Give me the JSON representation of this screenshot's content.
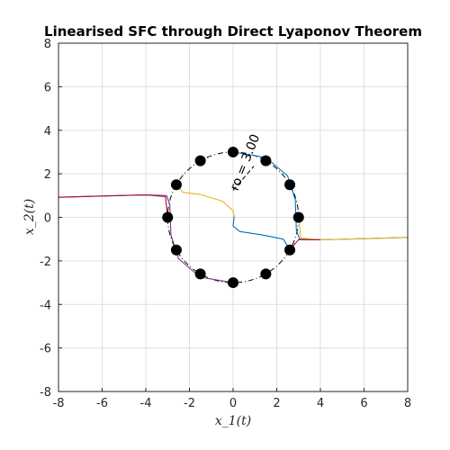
{
  "chart_data": {
    "type": "line",
    "title": "Linearised SFC through Direct Lyaponov Theorem",
    "xlabel": "x_1(t)",
    "ylabel": "x_2(t)",
    "xlim": [
      -8,
      8
    ],
    "ylim": [
      -8,
      8
    ],
    "xticks": [
      "-8",
      "-6",
      "-4",
      "-2",
      "0",
      "2",
      "4",
      "6",
      "8"
    ],
    "yticks": [
      "-8",
      "-6",
      "-4",
      "-2",
      "0",
      "2",
      "4",
      "6",
      "8"
    ],
    "grid": true,
    "annotation": "ro = 3.00",
    "region_circle": {
      "center": [
        0,
        0
      ],
      "radius": 3.0,
      "style": "dash-dot"
    },
    "initial_points": [
      [
        0,
        3
      ],
      [
        1.5,
        2.6
      ],
      [
        2.6,
        1.5
      ],
      [
        3,
        0
      ],
      [
        2.6,
        -1.5
      ],
      [
        1.5,
        -2.6
      ],
      [
        0,
        -3
      ],
      [
        -1.5,
        -2.6
      ],
      [
        -2.6,
        -1.5
      ],
      [
        -3,
        0
      ],
      [
        -2.6,
        1.5
      ],
      [
        -1.5,
        2.6
      ]
    ],
    "series": [
      {
        "color": "#0072BD",
        "points": [
          [
            0,
            3
          ],
          [
            1.5,
            2.75
          ],
          [
            2.5,
            1.9
          ],
          [
            2.85,
            0.8
          ],
          [
            2.9,
            -0.6
          ],
          [
            3.05,
            -1.0
          ],
          [
            4,
            -1.03
          ],
          [
            6,
            -0.98
          ],
          [
            8,
            -0.92
          ]
        ]
      },
      {
        "color": "#0072BD",
        "points": [
          [
            2.6,
            -1.5
          ],
          [
            2.3,
            -1.0
          ],
          [
            1.3,
            -0.8
          ],
          [
            0.3,
            -0.65
          ],
          [
            0,
            -0.4
          ],
          [
            0.05,
            0.05
          ]
        ]
      },
      {
        "color": "#EDB120",
        "points": [
          [
            3,
            0
          ],
          [
            3.1,
            -0.95
          ],
          [
            4,
            -1.03
          ],
          [
            6,
            -0.98
          ],
          [
            8,
            -0.92
          ]
        ]
      },
      {
        "color": "#EDB120",
        "points": [
          [
            -2.6,
            1.5
          ],
          [
            -2.3,
            1.15
          ],
          [
            -1.5,
            1.05
          ],
          [
            -0.5,
            0.75
          ],
          [
            0,
            0.3
          ],
          [
            0.05,
            0.05
          ]
        ]
      },
      {
        "color": "#7E2F8E",
        "points": [
          [
            0,
            -3
          ],
          [
            -1.5,
            -2.75
          ],
          [
            -2.5,
            -1.9
          ],
          [
            -2.85,
            -0.8
          ],
          [
            -2.9,
            0.6
          ],
          [
            -3.05,
            1.0
          ],
          [
            -4,
            1.03
          ],
          [
            -6,
            0.98
          ],
          [
            -8,
            0.92
          ]
        ]
      },
      {
        "color": "#A2142F",
        "points": [
          [
            -3,
            0
          ],
          [
            -3.1,
            0.95
          ],
          [
            -4,
            1.03
          ],
          [
            -6,
            0.98
          ],
          [
            -8,
            0.92
          ]
        ]
      },
      {
        "color": "#A2142F",
        "points": [
          [
            2.6,
            -1.5
          ],
          [
            2.85,
            -1.2
          ],
          [
            3.0,
            -1.02
          ],
          [
            4,
            -1.03
          ]
        ]
      }
    ]
  }
}
